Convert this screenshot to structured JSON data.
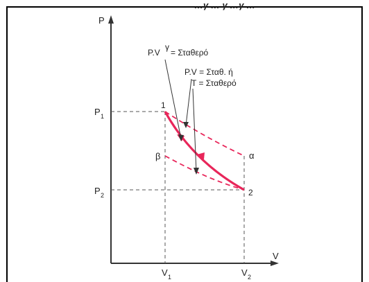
{
  "header_fragment": "…γ … γ …γ …",
  "axes": {
    "y_label": "P",
    "x_label": "V",
    "p1": {
      "main": "P",
      "sub": "1"
    },
    "p2": {
      "main": "P",
      "sub": "2"
    },
    "v1": {
      "main": "V",
      "sub": "1"
    },
    "v2": {
      "main": "V",
      "sub": "2"
    }
  },
  "points": {
    "one": "1",
    "two": "2",
    "alpha": "α",
    "beta": "β"
  },
  "annotations": {
    "adiabatic": "P.V",
    "adiabatic_exp": "γ",
    "adiabatic_rest": "= Σταθερό",
    "isothermal_line1": "P.V = Σταθ. ή",
    "isothermal_line2": "T = Σταθερό"
  },
  "colors": {
    "curve": "#e8265a",
    "axes": "#333333",
    "guides": "#555555"
  }
}
